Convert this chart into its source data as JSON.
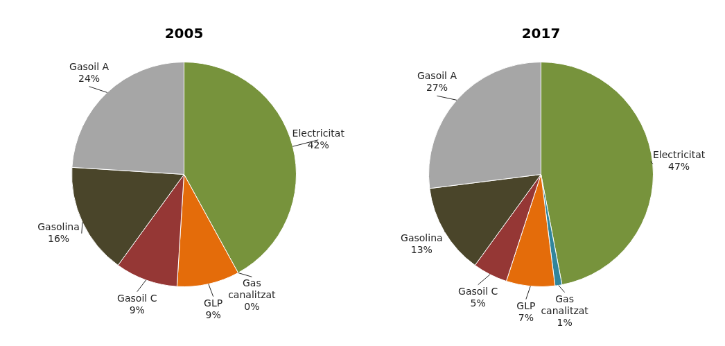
{
  "chart_data": [
    {
      "type": "pie",
      "title": "2005",
      "categories": [
        "Electricitat",
        "Gas canalitzat",
        "GLP",
        "Gasoil C",
        "Gasolina",
        "Gasoil A"
      ],
      "values": [
        42,
        0,
        9,
        9,
        16,
        24
      ],
      "value_labels": [
        "42%",
        "0%",
        "9%",
        "9%",
        "16%",
        "24%"
      ],
      "colors": [
        "#77933c",
        "#31859c",
        "#e46c0a",
        "#953735",
        "#4a452a",
        "#a6a6a6"
      ]
    },
    {
      "type": "pie",
      "title": "2017",
      "categories": [
        "Electricitat",
        "Gas canalitzat",
        "GLP",
        "Gasoil C",
        "Gasolina",
        "Gasoil A"
      ],
      "values": [
        47,
        1,
        7,
        5,
        13,
        27
      ],
      "value_labels": [
        "47%",
        "1%",
        "7%",
        "5%",
        "13%",
        "27%"
      ],
      "colors": [
        "#77933c",
        "#31859c",
        "#e46c0a",
        "#953735",
        "#4a452a",
        "#a6a6a6"
      ]
    }
  ]
}
